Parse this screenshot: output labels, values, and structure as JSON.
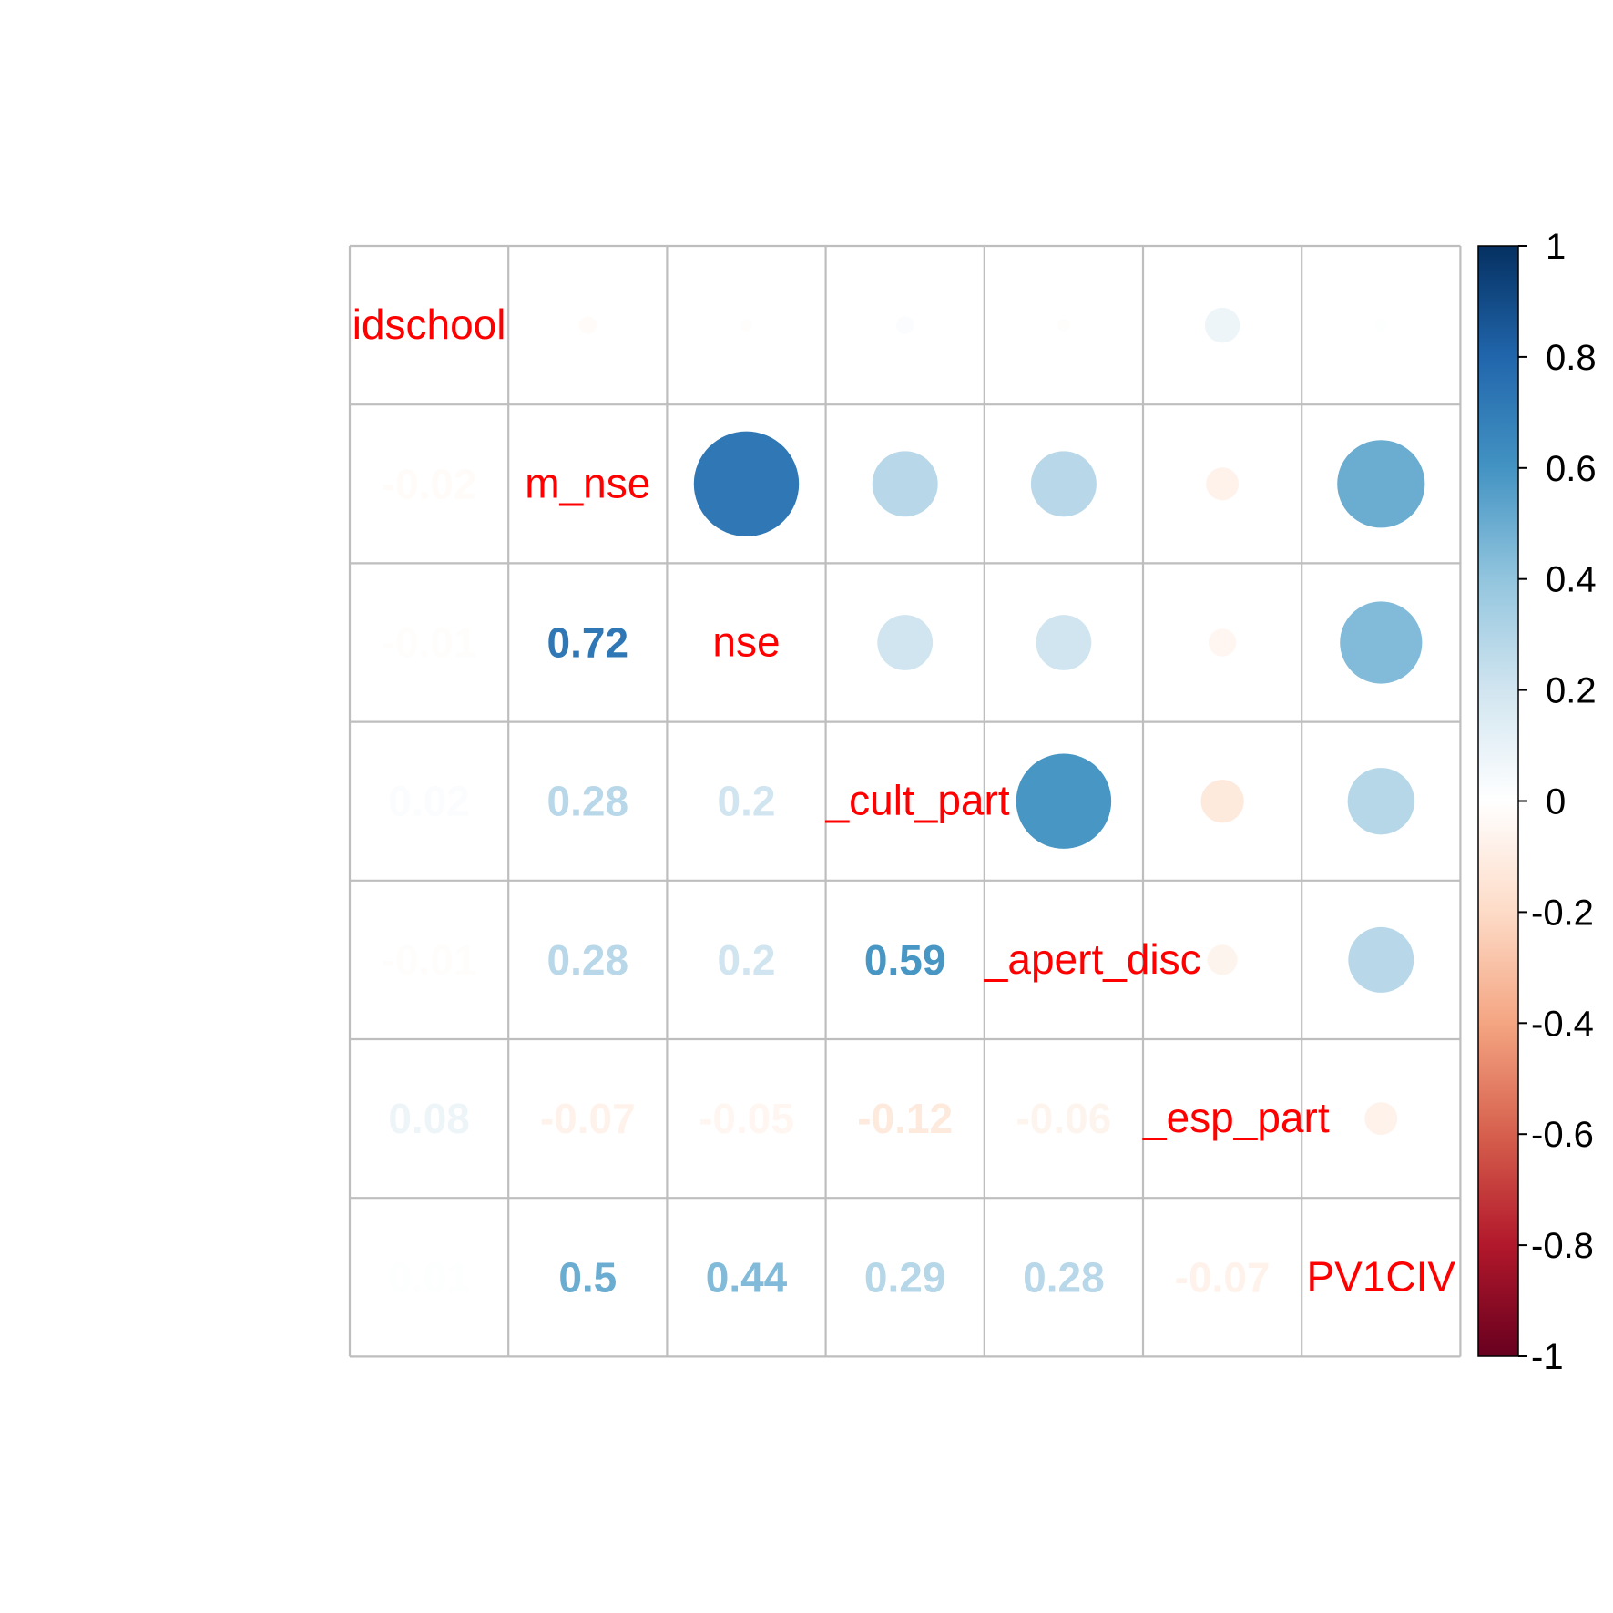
{
  "chart_data": {
    "type": "heatmap",
    "style": "mixed correlation plot: circles in upper triangle, numbers in lower triangle, variable names on diagonal",
    "variables": [
      "idschool",
      "m_nse",
      "nse",
      "_cult_part",
      "_apert_disc",
      "_esp_part",
      "PV1CIV"
    ],
    "matrix": [
      [
        1,
        -0.02,
        -0.01,
        0.02,
        -0.01,
        0.08,
        0.01
      ],
      [
        -0.02,
        1,
        0.72,
        0.28,
        0.28,
        -0.07,
        0.5
      ],
      [
        -0.01,
        0.72,
        1,
        0.2,
        0.2,
        -0.05,
        0.44
      ],
      [
        0.02,
        0.28,
        0.2,
        1,
        0.59,
        -0.12,
        0.29
      ],
      [
        -0.01,
        0.28,
        0.2,
        0.59,
        1,
        -0.06,
        0.28
      ],
      [
        0.08,
        -0.07,
        -0.05,
        -0.12,
        -0.06,
        1,
        -0.07
      ],
      [
        0.01,
        0.5,
        0.44,
        0.29,
        0.28,
        -0.07,
        1
      ]
    ],
    "lower_labels": [
      {
        "row": 1,
        "col": 0,
        "text": "-0.02"
      },
      {
        "row": 2,
        "col": 0,
        "text": "-0.01"
      },
      {
        "row": 2,
        "col": 1,
        "text": "0.72"
      },
      {
        "row": 3,
        "col": 0,
        "text": "0.02"
      },
      {
        "row": 3,
        "col": 1,
        "text": "0.28"
      },
      {
        "row": 3,
        "col": 2,
        "text": "0.2"
      },
      {
        "row": 4,
        "col": 0,
        "text": "-0.01"
      },
      {
        "row": 4,
        "col": 1,
        "text": "0.28"
      },
      {
        "row": 4,
        "col": 2,
        "text": "0.2"
      },
      {
        "row": 4,
        "col": 3,
        "text": "0.59"
      },
      {
        "row": 5,
        "col": 0,
        "text": "0.08"
      },
      {
        "row": 5,
        "col": 1,
        "text": "-0.07"
      },
      {
        "row": 5,
        "col": 2,
        "text": "-0.05"
      },
      {
        "row": 5,
        "col": 3,
        "text": "-0.12"
      },
      {
        "row": 5,
        "col": 4,
        "text": "-0.06"
      },
      {
        "row": 6,
        "col": 0,
        "text": "0.01"
      },
      {
        "row": 6,
        "col": 1,
        "text": "0.5"
      },
      {
        "row": 6,
        "col": 2,
        "text": "0.44"
      },
      {
        "row": 6,
        "col": 3,
        "text": "0.29"
      },
      {
        "row": 6,
        "col": 4,
        "text": "0.28"
      },
      {
        "row": 6,
        "col": 5,
        "text": "-0.07"
      }
    ],
    "colorbar": {
      "range": [
        -1,
        1
      ],
      "ticks": [
        "1",
        "0.8",
        "0.6",
        "0.4",
        "0.2",
        "0",
        "-0.2",
        "-0.4",
        "-0.6",
        "-0.8",
        "-1"
      ],
      "colors_low_to_high": [
        "#67001F",
        "#B2182B",
        "#D6604D",
        "#F4A582",
        "#FDDBC7",
        "#FFFFFF",
        "#D1E5F0",
        "#92C5DE",
        "#4393C3",
        "#2166AC",
        "#053061"
      ]
    },
    "label_color": "#FF0000",
    "grid_color": "#BEBEBE",
    "title": "",
    "xlabel": "",
    "ylabel": ""
  }
}
